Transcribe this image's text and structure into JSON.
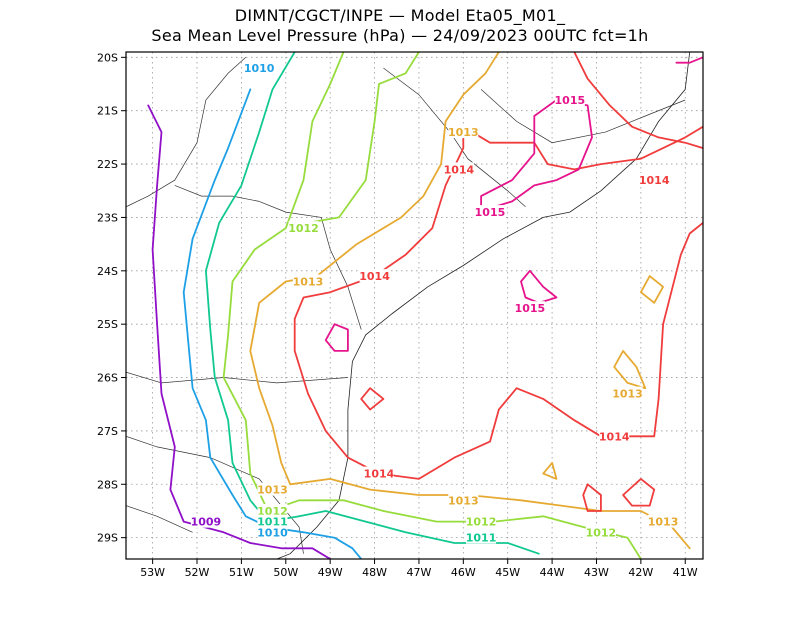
{
  "title_line1": "DIMNT/CGCT/INPE —  Model Eta05_M01_",
  "title_line2": "Sea Mean Level Pressure (hPa) — 24/09/2023 00UTC fct=1h",
  "map_extent": {
    "lon": [
      -53.6,
      -40.6
    ],
    "lat": [
      -29.4,
      -19.9
    ]
  },
  "lon_ticks": [
    "53W",
    "52W",
    "51W",
    "50W",
    "49W",
    "48W",
    "47W",
    "46W",
    "45W",
    "44W",
    "43W",
    "42W",
    "41W"
  ],
  "lat_ticks": [
    "20S",
    "21S",
    "22S",
    "23S",
    "24S",
    "25S",
    "26S",
    "27S",
    "28S",
    "29S"
  ],
  "grid": true,
  "isobar_colors": {
    "1009": "#9010c8",
    "1010": "#1ea0e6",
    "1011": "#10c890",
    "1012": "#96dc3c",
    "1013": "#e6aa32",
    "1014": "#f03c3c",
    "1015": "#e6148c"
  },
  "isobar_labels": [
    {
      "text": "1010",
      "lon": -50.6,
      "lat": -20.2,
      "level": "1010"
    },
    {
      "text": "1015",
      "lon": -43.6,
      "lat": -20.8,
      "level": "1015"
    },
    {
      "text": "1013",
      "lon": -46.0,
      "lat": -21.4,
      "level": "1013"
    },
    {
      "text": "1014",
      "lon": -46.1,
      "lat": -22.1,
      "level": "1014"
    },
    {
      "text": "1014",
      "lon": -41.7,
      "lat": -22.3,
      "level": "1014"
    },
    {
      "text": "1015",
      "lon": -45.4,
      "lat": -22.9,
      "level": "1015"
    },
    {
      "text": "1012",
      "lon": -49.6,
      "lat": -23.2,
      "level": "1012"
    },
    {
      "text": "1013",
      "lon": -49.5,
      "lat": -24.2,
      "level": "1013"
    },
    {
      "text": "1014",
      "lon": -48.0,
      "lat": -24.1,
      "level": "1014"
    },
    {
      "text": "1015",
      "lon": -44.5,
      "lat": -24.7,
      "level": "1015"
    },
    {
      "text": "1013",
      "lon": -42.3,
      "lat": -26.3,
      "level": "1013"
    },
    {
      "text": "1014",
      "lon": -42.6,
      "lat": -27.1,
      "level": "1014"
    },
    {
      "text": "1014",
      "lon": -47.9,
      "lat": -27.8,
      "level": "1014"
    },
    {
      "text": "1013",
      "lon": -50.3,
      "lat": -28.1,
      "level": "1013"
    },
    {
      "text": "1013",
      "lon": -46.0,
      "lat": -28.3,
      "level": "1013"
    },
    {
      "text": "1012",
      "lon": -50.3,
      "lat": -28.5,
      "level": "1012"
    },
    {
      "text": "1011",
      "lon": -50.3,
      "lat": -28.7,
      "level": "1011"
    },
    {
      "text": "1012",
      "lon": -45.6,
      "lat": -28.7,
      "level": "1012"
    },
    {
      "text": "1010",
      "lon": -50.3,
      "lat": -28.9,
      "level": "1010"
    },
    {
      "text": "1009",
      "lon": -51.8,
      "lat": -28.7,
      "level": "1009"
    },
    {
      "text": "1011",
      "lon": -45.6,
      "lat": -29.0,
      "level": "1011"
    },
    {
      "text": "1013",
      "lon": -41.5,
      "lat": -28.7,
      "level": "1013"
    },
    {
      "text": "1012",
      "lon": -42.9,
      "lat": -28.9,
      "level": "1012"
    }
  ],
  "isobars": [
    {
      "level": "1009",
      "points": [
        [
          -53.1,
          -20.9
        ],
        [
          -52.8,
          -21.4
        ],
        [
          -52.9,
          -22.4
        ],
        [
          -53.0,
          -23.6
        ],
        [
          -52.9,
          -25.0
        ],
        [
          -52.8,
          -26.3
        ],
        [
          -52.5,
          -27.3
        ],
        [
          -52.6,
          -28.1
        ],
        [
          -52.3,
          -28.7
        ],
        [
          -51.4,
          -28.9
        ],
        [
          -50.8,
          -29.1
        ],
        [
          -50.1,
          -29.2
        ],
        [
          -49.4,
          -29.2
        ],
        [
          -49.0,
          -29.4
        ]
      ]
    },
    {
      "level": "1010",
      "points": [
        [
          -50.8,
          -20.6
        ],
        [
          -51.3,
          -21.7
        ],
        [
          -51.6,
          -22.3
        ],
        [
          -52.1,
          -23.4
        ],
        [
          -52.3,
          -24.4
        ],
        [
          -52.2,
          -25.3
        ],
        [
          -52.1,
          -26.2
        ],
        [
          -51.8,
          -26.8
        ],
        [
          -51.7,
          -27.5
        ],
        [
          -51.2,
          -28.2
        ],
        [
          -50.9,
          -28.6
        ],
        [
          -50.4,
          -28.8
        ],
        [
          -49.6,
          -28.9
        ],
        [
          -48.9,
          -29.0
        ],
        [
          -48.5,
          -29.2
        ],
        [
          -48.3,
          -29.4
        ]
      ]
    },
    {
      "level": "1011",
      "points": [
        [
          -49.8,
          -19.9
        ],
        [
          -50.3,
          -20.6
        ],
        [
          -50.6,
          -21.4
        ],
        [
          -51.0,
          -22.4
        ],
        [
          -51.5,
          -23.1
        ],
        [
          -51.8,
          -24.0
        ],
        [
          -51.7,
          -25.1
        ],
        [
          -51.6,
          -26.0
        ],
        [
          -51.3,
          -26.8
        ],
        [
          -51.2,
          -27.6
        ],
        [
          -50.8,
          -28.3
        ],
        [
          -50.4,
          -28.7
        ],
        [
          -49.7,
          -28.6
        ],
        [
          -49.1,
          -28.5
        ],
        [
          -48.2,
          -28.7
        ],
        [
          -47.3,
          -28.9
        ],
        [
          -46.2,
          -29.1
        ],
        [
          -45.0,
          -29.1
        ],
        [
          -44.3,
          -29.3
        ]
      ]
    },
    {
      "level": "1012",
      "points": [
        [
          -48.7,
          -19.9
        ],
        [
          -49.0,
          -20.5
        ],
        [
          -49.4,
          -21.2
        ],
        [
          -49.6,
          -22.3
        ],
        [
          -50.0,
          -23.2
        ],
        [
          -50.7,
          -23.6
        ],
        [
          -51.2,
          -24.2
        ],
        [
          -51.3,
          -25.2
        ],
        [
          -51.4,
          -26.0
        ],
        [
          -50.9,
          -26.8
        ],
        [
          -50.8,
          -27.8
        ],
        [
          -50.4,
          -28.5
        ],
        [
          -49.7,
          -28.3
        ],
        [
          -48.7,
          -28.3
        ],
        [
          -47.8,
          -28.5
        ],
        [
          -46.6,
          -28.7
        ],
        [
          -45.3,
          -28.7
        ],
        [
          -44.2,
          -28.6
        ],
        [
          -43.3,
          -28.8
        ],
        [
          -42.3,
          -29.0
        ],
        [
          -42.0,
          -29.4
        ]
      ]
    },
    {
      "level": "1012",
      "points": [
        [
          -47.0,
          -19.9
        ],
        [
          -47.3,
          -20.3
        ],
        [
          -47.9,
          -20.5
        ],
        [
          -48.0,
          -21.2
        ],
        [
          -48.2,
          -22.3
        ],
        [
          -48.8,
          -23.0
        ],
        [
          -49.5,
          -23.1
        ]
      ]
    },
    {
      "level": "1013",
      "points": [
        [
          -45.2,
          -19.9
        ],
        [
          -45.5,
          -20.3
        ],
        [
          -46.0,
          -20.7
        ],
        [
          -46.4,
          -21.2
        ],
        [
          -46.5,
          -22.0
        ],
        [
          -46.9,
          -22.6
        ],
        [
          -47.4,
          -23.0
        ],
        [
          -48.4,
          -23.5
        ],
        [
          -49.3,
          -24.1
        ],
        [
          -50.0,
          -24.2
        ],
        [
          -50.6,
          -24.6
        ],
        [
          -50.8,
          -25.5
        ],
        [
          -50.6,
          -26.2
        ],
        [
          -50.3,
          -26.9
        ],
        [
          -50.1,
          -27.6
        ],
        [
          -49.9,
          -28.0
        ],
        [
          -49.0,
          -27.9
        ],
        [
          -48.1,
          -28.1
        ],
        [
          -47.0,
          -28.2
        ],
        [
          -45.9,
          -28.2
        ],
        [
          -44.7,
          -28.3
        ],
        [
          -43.8,
          -28.4
        ],
        [
          -42.9,
          -28.5
        ],
        [
          -42.0,
          -28.5
        ],
        [
          -41.3,
          -28.8
        ],
        [
          -40.9,
          -29.2
        ]
      ]
    },
    {
      "level": "1013",
      "points": [
        [
          -42.4,
          -25.5
        ],
        [
          -42.1,
          -25.8
        ],
        [
          -41.9,
          -26.2
        ],
        [
          -42.3,
          -26.1
        ],
        [
          -42.6,
          -25.8
        ],
        [
          -42.4,
          -25.5
        ]
      ]
    },
    {
      "level": "1013",
      "points": [
        [
          -41.8,
          -24.1
        ],
        [
          -41.5,
          -24.3
        ],
        [
          -41.7,
          -24.6
        ],
        [
          -42.0,
          -24.4
        ],
        [
          -41.8,
          -24.1
        ]
      ]
    },
    {
      "level": "1013",
      "points": [
        [
          -44.0,
          -27.6
        ],
        [
          -43.9,
          -27.9
        ],
        [
          -44.2,
          -27.8
        ],
        [
          -44.0,
          -27.6
        ]
      ]
    },
    {
      "level": "1014",
      "points": [
        [
          -43.5,
          -19.9
        ],
        [
          -43.2,
          -20.4
        ],
        [
          -42.7,
          -20.9
        ],
        [
          -42.2,
          -21.3
        ],
        [
          -41.6,
          -21.5
        ],
        [
          -41.0,
          -21.6
        ],
        [
          -40.6,
          -21.7
        ]
      ]
    },
    {
      "level": "1014",
      "points": [
        [
          -46.0,
          -21.3
        ],
        [
          -46.0,
          -21.7
        ],
        [
          -46.4,
          -22.4
        ],
        [
          -46.7,
          -23.2
        ],
        [
          -47.3,
          -23.7
        ],
        [
          -48.0,
          -24.1
        ],
        [
          -49.0,
          -24.4
        ],
        [
          -49.6,
          -24.5
        ],
        [
          -49.8,
          -24.9
        ],
        [
          -49.8,
          -25.5
        ],
        [
          -49.5,
          -26.3
        ],
        [
          -49.1,
          -27.0
        ],
        [
          -48.6,
          -27.5
        ],
        [
          -47.9,
          -27.8
        ],
        [
          -47.0,
          -27.9
        ],
        [
          -46.2,
          -27.5
        ],
        [
          -45.4,
          -27.2
        ],
        [
          -45.2,
          -26.6
        ],
        [
          -44.8,
          -26.2
        ],
        [
          -44.2,
          -26.4
        ],
        [
          -43.5,
          -26.8
        ],
        [
          -42.9,
          -27.1
        ],
        [
          -42.3,
          -27.1
        ],
        [
          -41.7,
          -27.1
        ],
        [
          -41.6,
          -26.4
        ],
        [
          -41.5,
          -25.0
        ],
        [
          -41.1,
          -23.7
        ],
        [
          -40.9,
          -23.3
        ],
        [
          -40.6,
          -23.1
        ]
      ]
    },
    {
      "level": "1014",
      "points": [
        [
          -46.0,
          -21.3
        ],
        [
          -45.4,
          -21.6
        ],
        [
          -44.4,
          -21.6
        ],
        [
          -44.1,
          -22.0
        ],
        [
          -43.5,
          -22.1
        ],
        [
          -42.9,
          -22.0
        ],
        [
          -42.0,
          -21.9
        ],
        [
          -41.5,
          -21.7
        ],
        [
          -41.0,
          -21.5
        ],
        [
          -40.6,
          -21.3
        ]
      ]
    },
    {
      "level": "1014",
      "points": [
        [
          -48.1,
          -26.2
        ],
        [
          -47.8,
          -26.4
        ],
        [
          -48.1,
          -26.6
        ],
        [
          -48.3,
          -26.4
        ],
        [
          -48.1,
          -26.2
        ]
      ]
    },
    {
      "level": "1014",
      "points": [
        [
          -43.2,
          -28.0
        ],
        [
          -42.9,
          -28.2
        ],
        [
          -42.9,
          -28.5
        ],
        [
          -43.2,
          -28.5
        ],
        [
          -43.3,
          -28.2
        ],
        [
          -43.2,
          -28.0
        ]
      ]
    },
    {
      "level": "1014",
      "points": [
        [
          -42.0,
          -27.9
        ],
        [
          -41.7,
          -28.1
        ],
        [
          -41.8,
          -28.4
        ],
        [
          -42.2,
          -28.4
        ],
        [
          -42.4,
          -28.2
        ],
        [
          -42.0,
          -27.9
        ]
      ]
    },
    {
      "level": "1015",
      "points": [
        [
          -40.6,
          -20.0
        ],
        [
          -40.9,
          -20.1
        ],
        [
          -41.2,
          -20.1
        ]
      ]
    },
    {
      "level": "1015",
      "points": [
        [
          -43.9,
          -20.8
        ],
        [
          -43.2,
          -20.9
        ],
        [
          -43.1,
          -21.5
        ],
        [
          -43.4,
          -22.1
        ],
        [
          -43.9,
          -22.3
        ],
        [
          -44.4,
          -22.4
        ],
        [
          -44.9,
          -22.7
        ],
        [
          -45.3,
          -22.8
        ],
        [
          -45.6,
          -22.9
        ],
        [
          -45.6,
          -22.6
        ],
        [
          -44.9,
          -22.3
        ],
        [
          -44.4,
          -21.8
        ],
        [
          -44.4,
          -21.1
        ],
        [
          -43.9,
          -20.8
        ]
      ]
    },
    {
      "level": "1015",
      "points": [
        [
          -44.5,
          -24.0
        ],
        [
          -44.2,
          -24.3
        ],
        [
          -43.9,
          -24.5
        ],
        [
          -44.3,
          -24.6
        ],
        [
          -44.6,
          -24.5
        ],
        [
          -44.7,
          -24.2
        ],
        [
          -44.5,
          -24.0
        ]
      ]
    },
    {
      "level": "1015",
      "points": [
        [
          -48.9,
          -25.0
        ],
        [
          -48.6,
          -25.1
        ],
        [
          -48.6,
          -25.5
        ],
        [
          -48.9,
          -25.5
        ],
        [
          -49.1,
          -25.3
        ],
        [
          -48.9,
          -25.0
        ]
      ]
    }
  ],
  "coastline": [
    [
      -40.9,
      -19.9
    ],
    [
      -41.0,
      -20.6
    ],
    [
      -41.6,
      -21.2
    ],
    [
      -42.1,
      -21.9
    ],
    [
      -42.9,
      -22.5
    ],
    [
      -43.6,
      -22.9
    ],
    [
      -44.2,
      -23.0
    ],
    [
      -45.1,
      -23.4
    ],
    [
      -46.0,
      -23.9
    ],
    [
      -46.8,
      -24.3
    ],
    [
      -47.6,
      -24.8
    ],
    [
      -48.2,
      -25.2
    ],
    [
      -48.5,
      -25.7
    ],
    [
      -48.6,
      -26.6
    ],
    [
      -48.6,
      -27.5
    ],
    [
      -48.8,
      -28.3
    ],
    [
      -49.3,
      -28.8
    ],
    [
      -49.9,
      -29.3
    ],
    [
      -50.2,
      -29.4
    ]
  ],
  "borders": [
    [
      [
        -50.9,
        -20.0
      ],
      [
        -51.3,
        -20.3
      ],
      [
        -51.8,
        -20.8
      ],
      [
        -52.0,
        -21.6
      ],
      [
        -52.5,
        -22.3
      ],
      [
        -53.1,
        -22.6
      ],
      [
        -53.6,
        -22.8
      ]
    ],
    [
      [
        -50.6,
        -22.7
      ],
      [
        -51.2,
        -22.6
      ],
      [
        -51.9,
        -22.6
      ],
      [
        -52.5,
        -22.4
      ]
    ],
    [
      [
        -50.6,
        -22.7
      ],
      [
        -50.0,
        -22.9
      ],
      [
        -49.2,
        -23.0
      ],
      [
        -49.0,
        -23.6
      ],
      [
        -48.6,
        -24.3
      ],
      [
        -48.3,
        -25.1
      ]
    ],
    [
      [
        -53.6,
        -25.9
      ],
      [
        -52.8,
        -26.1
      ],
      [
        -51.4,
        -26.0
      ],
      [
        -50.2,
        -26.1
      ],
      [
        -48.6,
        -26.0
      ]
    ],
    [
      [
        -53.6,
        -27.1
      ],
      [
        -52.9,
        -27.3
      ],
      [
        -51.7,
        -27.5
      ],
      [
        -50.6,
        -27.9
      ],
      [
        -50.1,
        -28.4
      ],
      [
        -49.7,
        -28.8
      ],
      [
        -49.6,
        -29.3
      ]
    ],
    [
      [
        -47.8,
        -20.2
      ],
      [
        -47.0,
        -20.7
      ],
      [
        -46.3,
        -21.4
      ],
      [
        -45.9,
        -21.9
      ],
      [
        -45.0,
        -22.5
      ],
      [
        -44.6,
        -22.8
      ]
    ],
    [
      [
        -45.6,
        -20.6
      ],
      [
        -44.8,
        -21.2
      ],
      [
        -44.0,
        -21.6
      ],
      [
        -42.8,
        -21.4
      ],
      [
        -41.9,
        -21.1
      ],
      [
        -41.0,
        -20.8
      ]
    ],
    [
      [
        -53.6,
        -28.4
      ],
      [
        -52.9,
        -28.6
      ],
      [
        -52.1,
        -28.9
      ]
    ]
  ]
}
